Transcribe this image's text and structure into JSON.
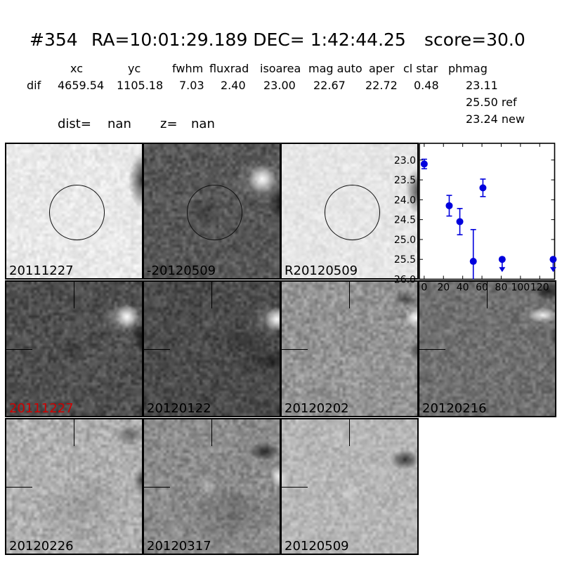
{
  "header": {
    "id": "#354",
    "coords": "RA=10:01:29.189 DEC= 1:42:44.25",
    "score": "score=30.0"
  },
  "measurements": {
    "headers": [
      "xc",
      "yc",
      "fwhm",
      "fluxrad",
      "isoarea",
      "mag auto",
      "aper",
      "cl star",
      "phmag"
    ],
    "row_label": "dif",
    "values": [
      "4659.54",
      "1105.18",
      "7.03",
      "2.40",
      "23.00",
      "22.67",
      "22.72",
      "0.48",
      "23.11"
    ],
    "phmag_ref": "25.50 ref",
    "phmag_new": "23.24 new",
    "dist_label": "dist=",
    "dist_value": "nan",
    "z_label": "z=",
    "z_value": "nan"
  },
  "colors": {
    "marker_blue": "#0000dd",
    "alert_red": "#cc0000",
    "text_black": "#000000"
  },
  "cutouts": {
    "row1": [
      {
        "label": "20111227",
        "label_color": "#000000"
      },
      {
        "label": "-20120509",
        "label_color": "#000000"
      },
      {
        "label": "R20120509",
        "label_color": "#000000"
      }
    ],
    "row2": [
      {
        "label": "20111227",
        "label_color": "#cc0000"
      },
      {
        "label": "20120122",
        "label_color": "#000000"
      },
      {
        "label": "20120202",
        "label_color": "#000000"
      },
      {
        "label": "20120216",
        "label_color": "#000000"
      }
    ],
    "row3": [
      {
        "label": "20120226",
        "label_color": "#000000"
      },
      {
        "label": "20120317",
        "label_color": "#000000"
      },
      {
        "label": "20120509",
        "label_color": "#000000"
      }
    ]
  },
  "chart_data": {
    "type": "scatter",
    "title": "",
    "xlabel": "",
    "ylabel": "",
    "x": [
      0,
      26,
      37,
      51,
      61,
      81,
      134
    ],
    "y": [
      23.1,
      24.15,
      24.55,
      25.55,
      23.7,
      25.5,
      25.5
    ],
    "yerr": [
      0.12,
      0.26,
      0.33,
      0.8,
      0.22,
      0,
      0
    ],
    "upper_limit": [
      false,
      false,
      false,
      false,
      false,
      true,
      true
    ],
    "clip_lower_error": [
      false,
      false,
      false,
      true,
      false,
      false,
      false
    ],
    "xtick_labels": [
      "0",
      "20",
      "40",
      "60",
      "80",
      "100",
      "120"
    ],
    "xtick_values": [
      0,
      20,
      40,
      60,
      80,
      100,
      120
    ],
    "ytick_labels": [
      "23.0",
      "23.5",
      "24.0",
      "24.5",
      "25.0",
      "25.5",
      "26.0"
    ],
    "ytick_values": [
      23.0,
      23.5,
      24.0,
      24.5,
      25.0,
      25.5,
      26.0
    ],
    "xlim": [
      -5,
      135.5
    ],
    "ylim": [
      26.0,
      22.58
    ],
    "y_axis_inverted": true,
    "grid": false,
    "legend_position": "none",
    "marker_color": "#0000dd"
  }
}
